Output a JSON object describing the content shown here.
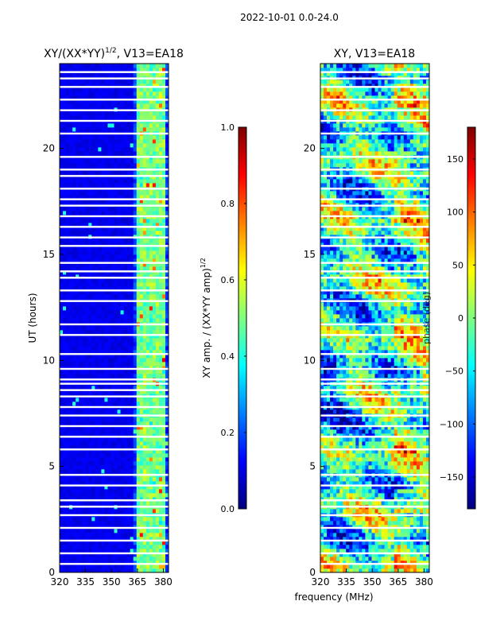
{
  "suptitle": "2022-10-01 0.0-24.0",
  "chart_data": [
    {
      "type": "heatmap",
      "title_main": "XY/(XX*YY)",
      "title_exp": "1/2",
      "title_suffix": ", V13=EA18",
      "ylabel": "UT (hours)",
      "xlabel": "",
      "xlim": [
        320,
        383
      ],
      "ylim": [
        0,
        24
      ],
      "xticks": [
        320,
        335,
        350,
        365,
        380
      ],
      "yticks": [
        0,
        5,
        10,
        15,
        20
      ],
      "xtick_labels": [
        "320",
        "335",
        "350",
        "365",
        "380"
      ],
      "ytick_labels": [
        "0",
        "5",
        "10",
        "15",
        "20"
      ],
      "colorbar": {
        "label_main": "XY amp. / (XX*YY amp)",
        "label_exp": "1/2",
        "range": [
          0.0,
          1.0
        ],
        "ticks": [
          0.0,
          0.2,
          0.4,
          0.6,
          0.8,
          1.0
        ],
        "tick_labels": [
          "0.0",
          "0.2",
          "0.4",
          "0.6",
          "0.8",
          "1.0"
        ]
      }
    },
    {
      "type": "heatmap",
      "title": "XY, V13=EA18",
      "xlabel": "frequency (MHz)",
      "ylabel": "",
      "xlim": [
        320,
        383
      ],
      "ylim": [
        0,
        24
      ],
      "xticks": [
        320,
        335,
        350,
        365,
        380
      ],
      "yticks": [
        0,
        5,
        10,
        15,
        20
      ],
      "xtick_labels": [
        "320",
        "335",
        "350",
        "365",
        "380"
      ],
      "ytick_labels": [
        "0",
        "5",
        "10",
        "15",
        "20"
      ],
      "colorbar": {
        "label": "phase (deg)",
        "range": [
          -180,
          180
        ],
        "ticks": [
          -150,
          -100,
          -50,
          0,
          50,
          100,
          150
        ],
        "tick_labels": [
          "−150",
          "−100",
          "−50",
          "0",
          "50",
          "100",
          "150"
        ]
      }
    }
  ],
  "flagged_hours": [
    0.4,
    0.9,
    1.5,
    2.1,
    2.7,
    3.1,
    3.4,
    4.1,
    4.6,
    5.8,
    6.4,
    6.9,
    7.4,
    7.8,
    8.3,
    8.6,
    8.9,
    9.1,
    9.6,
    10.3,
    11.2,
    11.7,
    12.8,
    13.3,
    13.9,
    14.2,
    14.6,
    15.4,
    15.8,
    16.3,
    16.8,
    17.3,
    17.6,
    18.1,
    18.7,
    19.0,
    19.6,
    20.7,
    21.3,
    21.8,
    22.3,
    22.9,
    23.3,
    23.6
  ],
  "amp_bright_channels_mhz": [
    365,
    368,
    371,
    374,
    377,
    380
  ],
  "colormap_name": "jet"
}
